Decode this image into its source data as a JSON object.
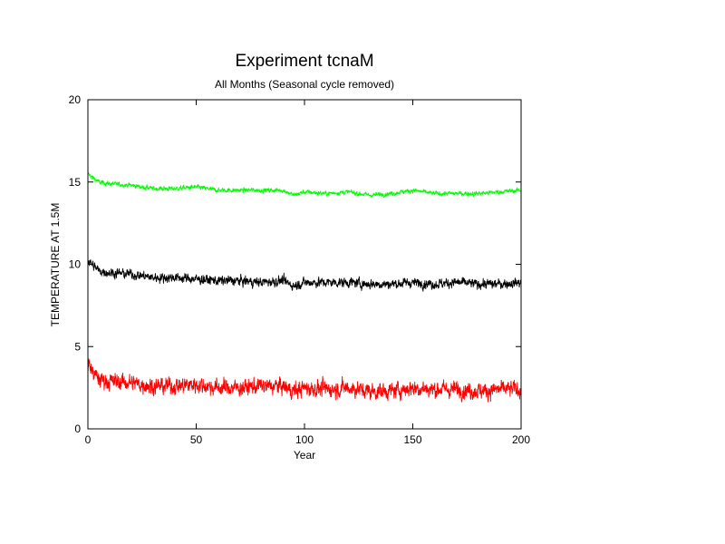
{
  "chart_data": {
    "type": "line",
    "title": "Experiment tcnaM",
    "subtitle": "All Months (Seasonal cycle removed)",
    "xlabel": "Year",
    "ylabel": "TEMPERATURE AT 1.5M",
    "xlim": [
      0,
      200
    ],
    "ylim": [
      0,
      20
    ],
    "xticks": [
      0,
      50,
      100,
      150,
      200
    ],
    "yticks": [
      0,
      5,
      10,
      15,
      20
    ],
    "grid": false,
    "series": [
      {
        "name": "green",
        "color": "#00ff00",
        "noise": 0.13,
        "x": [
          0,
          2,
          5,
          10,
          20,
          30,
          40,
          50,
          60,
          70,
          80,
          90,
          95,
          100,
          110,
          120,
          130,
          140,
          150,
          160,
          170,
          180,
          190,
          200
        ],
        "values": [
          15.5,
          15.3,
          15.0,
          14.9,
          14.8,
          14.6,
          14.6,
          14.7,
          14.5,
          14.5,
          14.5,
          14.5,
          14.2,
          14.4,
          14.3,
          14.4,
          14.2,
          14.3,
          14.5,
          14.3,
          14.3,
          14.3,
          14.4,
          14.5
        ]
      },
      {
        "name": "black",
        "color": "#000000",
        "noise": 0.28,
        "x": [
          0,
          2,
          5,
          10,
          20,
          30,
          40,
          50,
          60,
          70,
          80,
          90,
          95,
          100,
          110,
          120,
          130,
          140,
          150,
          160,
          170,
          180,
          190,
          200
        ],
        "values": [
          10.2,
          10.0,
          9.6,
          9.5,
          9.4,
          9.2,
          9.2,
          9.1,
          9.0,
          9.0,
          8.9,
          9.0,
          8.7,
          8.9,
          8.9,
          8.9,
          8.8,
          8.8,
          8.9,
          8.8,
          8.9,
          8.8,
          8.8,
          8.9
        ]
      },
      {
        "name": "red",
        "color": "#ff0000",
        "noise": 0.48,
        "x": [
          0,
          2,
          5,
          10,
          20,
          30,
          40,
          50,
          60,
          70,
          80,
          90,
          95,
          100,
          110,
          120,
          130,
          140,
          150,
          160,
          170,
          180,
          190,
          200
        ],
        "values": [
          4.0,
          3.5,
          3.0,
          2.9,
          2.8,
          2.6,
          2.6,
          2.7,
          2.5,
          2.5,
          2.6,
          2.6,
          2.3,
          2.5,
          2.4,
          2.5,
          2.3,
          2.3,
          2.5,
          2.4,
          2.4,
          2.3,
          2.4,
          2.4
        ]
      }
    ]
  }
}
